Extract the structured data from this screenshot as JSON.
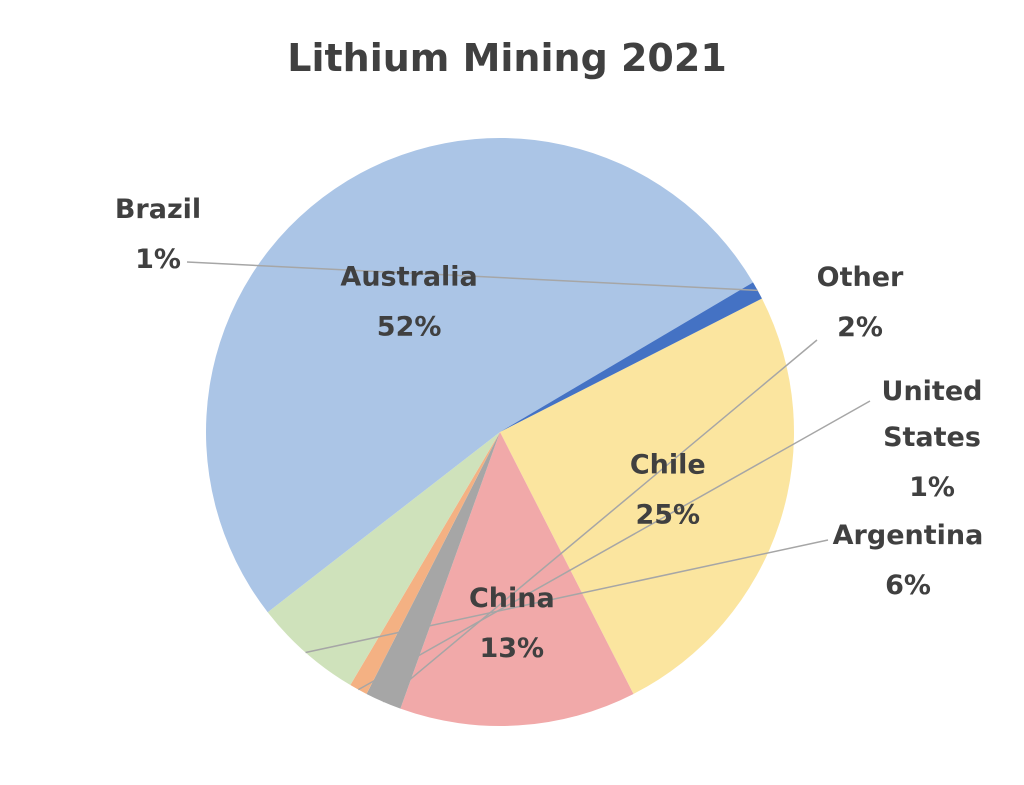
{
  "chart_data": {
    "type": "pie",
    "title": "Lithium Mining 2021",
    "slices": [
      {
        "name": "Chile",
        "value": 25,
        "label": "25%",
        "color": "#fbe59f"
      },
      {
        "name": "China",
        "value": 13,
        "label": "13%",
        "color": "#f1a9a9"
      },
      {
        "name": "Other",
        "value": 2,
        "label": "2%",
        "color": "#a6a6a6"
      },
      {
        "name": "United States",
        "value": 1,
        "label": "1%",
        "color": "#f4b183"
      },
      {
        "name": "Argentina",
        "value": 6,
        "label": "6%",
        "color": "#cfe2bb"
      },
      {
        "name": "Australia",
        "value": 52,
        "label": "52%",
        "color": "#abc5e6"
      },
      {
        "name": "Brazil",
        "value": 1,
        "label": "1%",
        "color": "#4472c4"
      }
    ]
  }
}
